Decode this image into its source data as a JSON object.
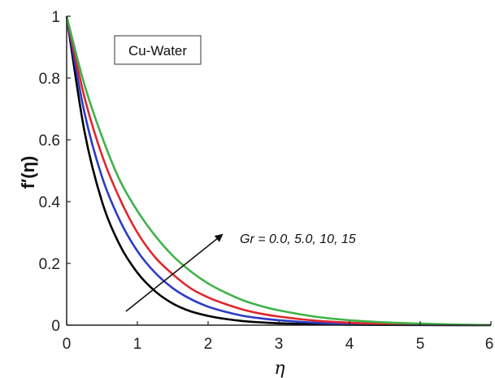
{
  "chart_data": {
    "type": "line",
    "title": "",
    "xlabel": "η",
    "ylabel": "f′(η)",
    "xlim": [
      0,
      6
    ],
    "ylim": [
      0,
      1
    ],
    "xticks": [
      "0",
      "1",
      "2",
      "3",
      "4",
      "5",
      "6"
    ],
    "yticks": [
      "0",
      "0.2",
      "0.4",
      "0.6",
      "0.8",
      "1"
    ],
    "grid": false,
    "legend_box": "Cu-Water",
    "annotation": "Gr = 0.0, 5.0, 10, 15",
    "x": [
      0,
      0.25,
      0.5,
      0.75,
      1,
      1.25,
      1.5,
      1.75,
      2,
      2.25,
      2.5,
      2.75,
      3,
      3.5,
      4,
      4.5,
      5,
      5.5,
      6
    ],
    "series": [
      {
        "color": "#000000",
        "values": [
          1.0,
          0.63,
          0.4,
          0.26,
          0.17,
          0.11,
          0.07,
          0.045,
          0.03,
          0.02,
          0.013,
          0.009,
          0.006,
          0.003,
          0.0015,
          0.0008,
          0.0004,
          0.0002,
          0.0
        ]
      },
      {
        "color": "#2b3cc4",
        "values": [
          1.0,
          0.69,
          0.48,
          0.34,
          0.24,
          0.17,
          0.12,
          0.085,
          0.06,
          0.043,
          0.03,
          0.022,
          0.016,
          0.008,
          0.004,
          0.002,
          0.001,
          0.0005,
          0.0
        ]
      },
      {
        "color": "#e0262b",
        "values": [
          1.0,
          0.74,
          0.55,
          0.41,
          0.3,
          0.22,
          0.165,
          0.12,
          0.09,
          0.068,
          0.05,
          0.037,
          0.028,
          0.015,
          0.008,
          0.004,
          0.002,
          0.001,
          0.0
        ]
      },
      {
        "color": "#3fb24a",
        "values": [
          1.0,
          0.78,
          0.61,
          0.47,
          0.37,
          0.29,
          0.225,
          0.175,
          0.135,
          0.105,
          0.08,
          0.062,
          0.048,
          0.028,
          0.016,
          0.009,
          0.005,
          0.002,
          0.0
        ]
      }
    ]
  }
}
